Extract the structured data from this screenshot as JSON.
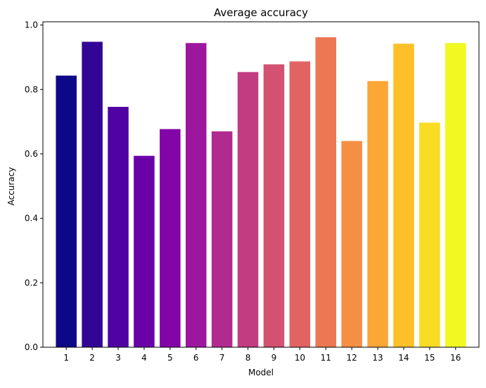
{
  "chart_data": {
    "type": "bar",
    "title": "Average accuracy",
    "xlabel": "Model",
    "ylabel": "Accuracy",
    "categories": [
      "1",
      "2",
      "3",
      "4",
      "5",
      "6",
      "7",
      "8",
      "9",
      "10",
      "11",
      "12",
      "13",
      "14",
      "15",
      "16"
    ],
    "values": [
      0.843,
      0.948,
      0.746,
      0.594,
      0.677,
      0.944,
      0.67,
      0.854,
      0.878,
      0.887,
      0.962,
      0.64,
      0.826,
      0.942,
      0.697,
      0.944
    ],
    "colors": [
      "#0d0887",
      "#330597",
      "#5102a3",
      "#6a00a8",
      "#8305a7",
      "#9c179e",
      "#b12a90",
      "#c23c81",
      "#d35171",
      "#e16462",
      "#ec7853",
      "#f58f44",
      "#fca636",
      "#fec029",
      "#f9dc24",
      "#f0f921"
    ],
    "ylim": [
      0,
      1.01
    ],
    "yticks": [
      0.0,
      0.2,
      0.4,
      0.6,
      0.8,
      1.0
    ],
    "ytick_labels": [
      "0.0",
      "0.2",
      "0.4",
      "0.6",
      "0.8",
      "1.0"
    ],
    "grid": false,
    "legend": "none"
  }
}
